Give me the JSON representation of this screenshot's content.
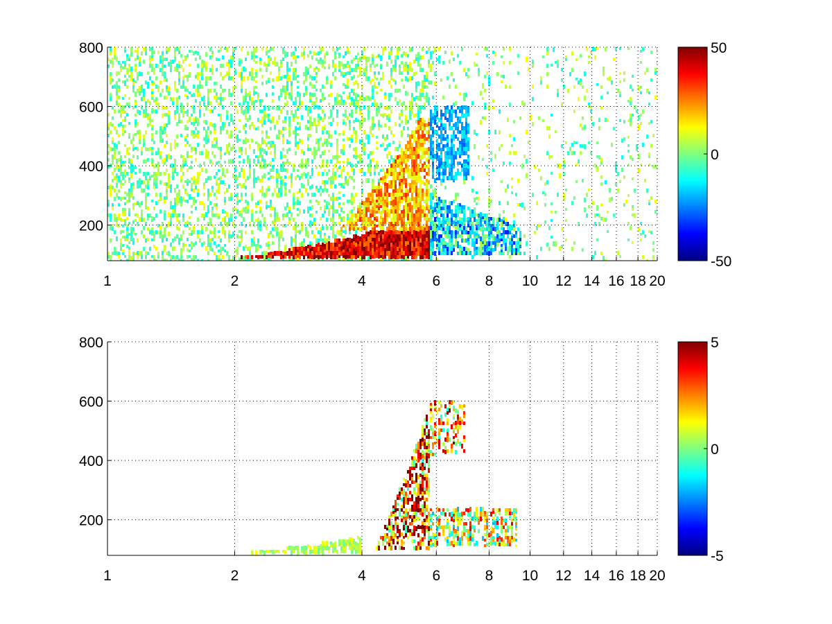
{
  "chart_data": [
    {
      "type": "heatmap",
      "title": "",
      "xlabel": "",
      "ylabel": "",
      "xlim": [
        1,
        20
      ],
      "ylim": [
        80,
        800
      ],
      "x_scale": "log",
      "x_ticks": [
        1,
        2,
        4,
        6,
        8,
        10,
        12,
        14,
        16,
        18,
        20
      ],
      "x_tick_labels": [
        "1",
        "2",
        "4",
        "6",
        "8",
        "10",
        "12",
        "14",
        "16",
        "18",
        "20"
      ],
      "y_ticks": [
        200,
        400,
        600,
        800
      ],
      "y_tick_labels": [
        "200",
        "400",
        "600",
        "800"
      ],
      "grid": true,
      "colormap": "jet",
      "clim": [
        -50,
        50
      ],
      "colorbar_ticks": [
        50,
        0,
        -50
      ],
      "colorbar_tick_labels": [
        "50",
        "0",
        "-50"
      ],
      "dominant_value_regions": [
        {
          "x_range": [
            2.0,
            5.8
          ],
          "y_range": [
            90,
            180
          ],
          "value": 40
        },
        {
          "x_range": [
            3.5,
            5.8
          ],
          "y_range": [
            180,
            560
          ],
          "value": 20
        },
        {
          "x_range": [
            5.8,
            7.2
          ],
          "y_range": [
            350,
            600
          ],
          "value": -20
        },
        {
          "x_range": [
            5.8,
            9.5
          ],
          "y_range": [
            100,
            300
          ],
          "value": -15
        },
        {
          "x_range": [
            1.0,
            20.0
          ],
          "y_range": [
            80,
            800
          ],
          "value": 0
        }
      ]
    },
    {
      "type": "heatmap",
      "title": "",
      "xlabel": "",
      "ylabel": "",
      "xlim": [
        1,
        20
      ],
      "ylim": [
        80,
        800
      ],
      "x_scale": "log",
      "x_ticks": [
        1,
        2,
        4,
        6,
        8,
        10,
        12,
        14,
        16,
        18,
        20
      ],
      "x_tick_labels": [
        "1",
        "2",
        "4",
        "6",
        "8",
        "10",
        "12",
        "14",
        "16",
        "18",
        "20"
      ],
      "y_ticks": [
        200,
        400,
        600,
        800
      ],
      "y_tick_labels": [
        "200",
        "400",
        "600",
        "800"
      ],
      "grid": true,
      "colormap": "jet",
      "clim": [
        -5,
        5
      ],
      "colorbar_ticks": [
        5,
        0,
        -5
      ],
      "colorbar_tick_labels": [
        "5",
        "0",
        "-5"
      ],
      "dominant_value_regions": [
        {
          "x_range": [
            2.0,
            4.0
          ],
          "y_range": [
            85,
            160
          ],
          "value": 0.5
        },
        {
          "x_range": [
            4.3,
            5.8
          ],
          "y_range": [
            100,
            560
          ],
          "value": 3
        },
        {
          "x_range": [
            5.8,
            7.0
          ],
          "y_range": [
            420,
            600
          ],
          "value": 2
        },
        {
          "x_range": [
            5.8,
            9.3
          ],
          "y_range": [
            110,
            240
          ],
          "value": 1
        }
      ]
    }
  ]
}
